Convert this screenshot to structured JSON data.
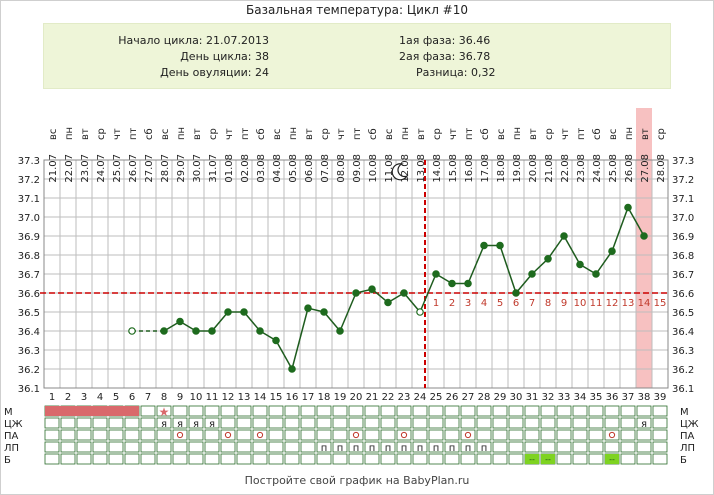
{
  "title": "Базальная температура: Цикл #10",
  "info": {
    "cycle_start": "Начало цикла: 21.07.2013",
    "cycle_day": "День цикла: 38",
    "ovulation_day": "День овуляции: 24",
    "phase1": "1ая фаза: 36.46",
    "phase2": "2ая фаза: 36.78",
    "difference": "Разница: 0,32"
  },
  "footer": "Постройте свой график на BabyPlan.ru",
  "row_labels": [
    "М",
    "ЦЖ",
    "ПА",
    "ЛП",
    "Б"
  ],
  "colors": {
    "line": "#1e5c1e",
    "point": "#1e6b1e",
    "coverline": "#cc0000",
    "ovulation_line": "#cc0000",
    "luteal_numbers": "#c0392b",
    "menstruation": "#d9696b",
    "highlight_day": "#f7c1c1",
    "b_marker": "#7ed321",
    "grid": "#bdbdbd"
  },
  "chart_data": {
    "type": "line",
    "title": "Базальная температура: Цикл #10",
    "days": [
      1,
      2,
      3,
      4,
      5,
      6,
      7,
      8,
      9,
      10,
      11,
      12,
      13,
      14,
      15,
      16,
      17,
      18,
      19,
      20,
      21,
      22,
      23,
      24,
      25,
      26,
      27,
      28,
      29,
      30,
      31,
      32,
      33,
      34,
      35,
      36,
      37,
      38,
      39
    ],
    "weekdays": [
      "вс",
      "пн",
      "вт",
      "ср",
      "чт",
      "пт",
      "сб",
      "вс",
      "пн",
      "вт",
      "ср",
      "чт",
      "пт",
      "сб",
      "вс",
      "пн",
      "вт",
      "ср",
      "чт",
      "пт",
      "сб",
      "вс",
      "пн",
      "вт",
      "ср",
      "чт",
      "пт",
      "сб",
      "вс",
      "пн",
      "вт",
      "ср",
      "чт",
      "пт",
      "сб",
      "вс",
      "пн",
      "вт",
      "ср"
    ],
    "dates": [
      "21.07",
      "22.07",
      "23.07",
      "24.07",
      "25.07",
      "26.07",
      "27.07",
      "28.07",
      "29.07",
      "30.07",
      "31.07",
      "01.08",
      "02.08",
      "03.08",
      "04.08",
      "05.08",
      "06.08",
      "07.08",
      "08.08",
      "09.08",
      "10.08",
      "11.08",
      "12.08",
      "13.08",
      "14.08",
      "15.08",
      "16.08",
      "17.08",
      "18.08",
      "19.08",
      "20.08",
      "21.08",
      "22.08",
      "23.08",
      "24.08",
      "25.08",
      "26.08",
      "27.08",
      "28.08"
    ],
    "temperatures": [
      null,
      null,
      null,
      null,
      null,
      36.4,
      null,
      36.4,
      36.45,
      36.4,
      36.4,
      36.5,
      36.5,
      36.4,
      36.35,
      36.2,
      36.52,
      36.5,
      36.4,
      36.6,
      36.62,
      36.55,
      36.6,
      36.5,
      36.7,
      36.65,
      36.65,
      36.85,
      36.85,
      36.6,
      36.7,
      36.78,
      36.9,
      36.75,
      36.7,
      36.82,
      37.05,
      36.9,
      null
    ],
    "open_point_days": [
      6,
      24
    ],
    "ylim": [
      36.1,
      37.3
    ],
    "y_ticks": [
      "36.1",
      "36.2",
      "36.3",
      "36.4",
      "36.5",
      "36.6",
      "36.7",
      "36.8",
      "36.9",
      "37.0",
      "37.1",
      "37.2",
      "37.3"
    ],
    "coverline": 36.6,
    "ovulation_day": 24,
    "luteal_day_numbers": [
      "1",
      "2",
      "3",
      "4",
      "5",
      "6",
      "7",
      "8",
      "9",
      "10",
      "11",
      "12",
      "13",
      "14",
      "15"
    ],
    "highlighted_day": 38,
    "menstruation_days": [
      1,
      2,
      3,
      4,
      5,
      6
    ],
    "m_star_day": 8,
    "tsj_marks": [
      {
        "day": 8,
        "text": "я"
      },
      {
        "day": 9,
        "text": "я"
      },
      {
        "day": 10,
        "text": "я"
      },
      {
        "day": 11,
        "text": "я"
      },
      {
        "day": 38,
        "text": "я"
      }
    ],
    "pa_marks": [
      9,
      12,
      14,
      20,
      23,
      27,
      36
    ],
    "lp_marks": [
      {
        "day": 18,
        "text": "п"
      },
      {
        "day": 19,
        "text": "п"
      },
      {
        "day": 20,
        "text": "п"
      },
      {
        "day": 21,
        "text": "п"
      },
      {
        "day": 22,
        "text": "п"
      },
      {
        "day": 23,
        "text": "п"
      },
      {
        "day": 24,
        "text": "п"
      },
      {
        "day": 25,
        "text": "п"
      },
      {
        "day": 26,
        "text": "п"
      },
      {
        "day": 27,
        "text": "п"
      },
      {
        "day": 28,
        "text": "п"
      }
    ],
    "b_marks": [
      {
        "day": 31,
        "text": "--"
      },
      {
        "day": 32,
        "text": "--"
      },
      {
        "day": 36,
        "text": "--"
      }
    ],
    "moon_icon": "crescent-moon-icon",
    "grid": true
  }
}
